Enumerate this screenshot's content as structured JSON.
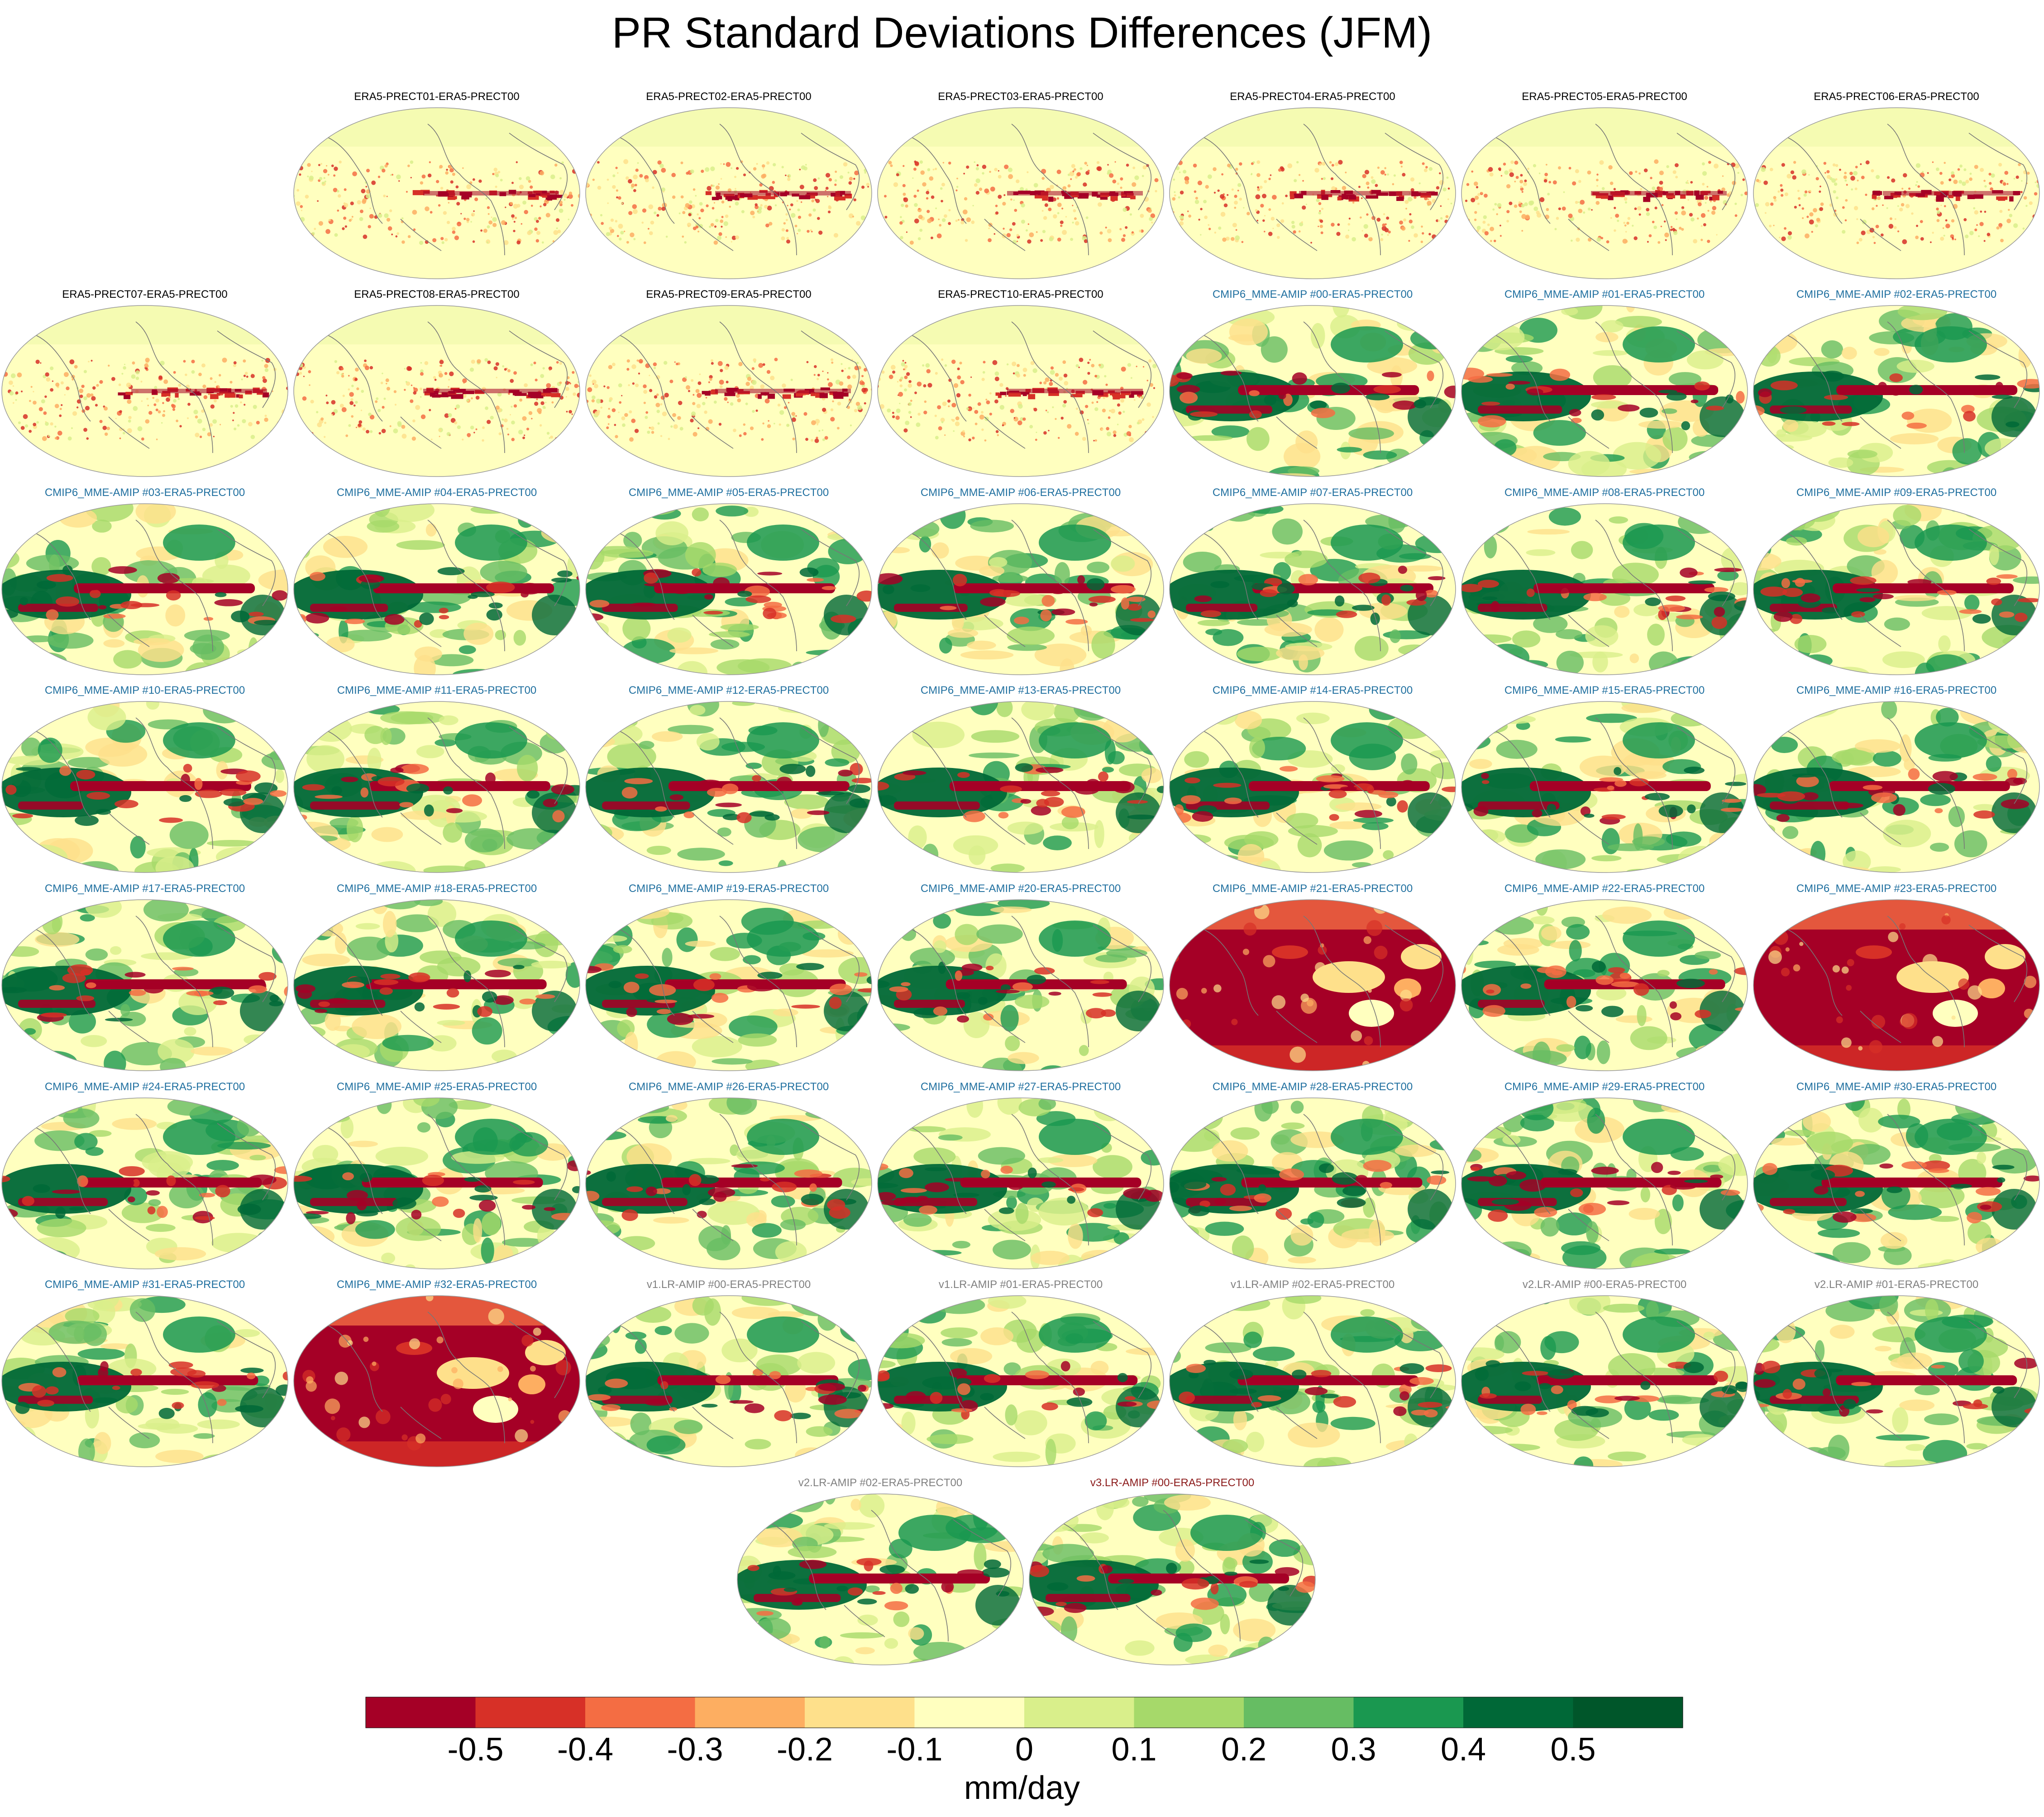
{
  "chart_data": {
    "type": "heatmap",
    "title": "PR Standard Deviations Differences (JFM)",
    "projection": "global ellipse map (Robinson-like), continent outlines",
    "units": "mm/day",
    "colorbar": {
      "ticks": [
        "-0.5",
        "-0.4",
        "-0.3",
        "-0.2",
        "-0.1",
        "0",
        "0.1",
        "0.2",
        "0.3",
        "0.4",
        "0.5"
      ],
      "colors": [
        "#a50026",
        "#d73027",
        "#f46d43",
        "#fdae61",
        "#fee08b",
        "#ffffbf",
        "#d9ef8b",
        "#a6d96a",
        "#66bd63",
        "#1a9850",
        "#006837",
        "#00562a"
      ],
      "orientation": "horizontal",
      "placement": "bottom"
    },
    "label_colors": {
      "ERA5": "#000000",
      "CMIP6": "#1f6f9f",
      "v1": "#808080",
      "v2": "#808080",
      "v3": "#8b1a1a"
    },
    "panels": [
      {
        "label": "ERA5-PRECT01-ERA5-PRECT00",
        "group": "ERA5",
        "pattern": "noise"
      },
      {
        "label": "ERA5-PRECT02-ERA5-PRECT00",
        "group": "ERA5",
        "pattern": "noise"
      },
      {
        "label": "ERA5-PRECT03-ERA5-PRECT00",
        "group": "ERA5",
        "pattern": "noise"
      },
      {
        "label": "ERA5-PRECT04-ERA5-PRECT00",
        "group": "ERA5",
        "pattern": "noise"
      },
      {
        "label": "ERA5-PRECT05-ERA5-PRECT00",
        "group": "ERA5",
        "pattern": "noise"
      },
      {
        "label": "ERA5-PRECT06-ERA5-PRECT00",
        "group": "ERA5",
        "pattern": "noise"
      },
      {
        "label": "ERA5-PRECT07-ERA5-PRECT00",
        "group": "ERA5",
        "pattern": "noise"
      },
      {
        "label": "ERA5-PRECT08-ERA5-PRECT00",
        "group": "ERA5",
        "pattern": "noise"
      },
      {
        "label": "ERA5-PRECT09-ERA5-PRECT00",
        "group": "ERA5",
        "pattern": "noise"
      },
      {
        "label": "ERA5-PRECT10-ERA5-PRECT00",
        "group": "ERA5",
        "pattern": "noise"
      },
      {
        "label": "CMIP6_MME-AMIP  #00-ERA5-PRECT00",
        "group": "CMIP6",
        "pattern": "model"
      },
      {
        "label": "CMIP6_MME-AMIP  #01-ERA5-PRECT00",
        "group": "CMIP6",
        "pattern": "model"
      },
      {
        "label": "CMIP6_MME-AMIP  #02-ERA5-PRECT00",
        "group": "CMIP6",
        "pattern": "model"
      },
      {
        "label": "CMIP6_MME-AMIP  #03-ERA5-PRECT00",
        "group": "CMIP6",
        "pattern": "model"
      },
      {
        "label": "CMIP6_MME-AMIP  #04-ERA5-PRECT00",
        "group": "CMIP6",
        "pattern": "model"
      },
      {
        "label": "CMIP6_MME-AMIP  #05-ERA5-PRECT00",
        "group": "CMIP6",
        "pattern": "model"
      },
      {
        "label": "CMIP6_MME-AMIP  #06-ERA5-PRECT00",
        "group": "CMIP6",
        "pattern": "model"
      },
      {
        "label": "CMIP6_MME-AMIP  #07-ERA5-PRECT00",
        "group": "CMIP6",
        "pattern": "model"
      },
      {
        "label": "CMIP6_MME-AMIP  #08-ERA5-PRECT00",
        "group": "CMIP6",
        "pattern": "model"
      },
      {
        "label": "CMIP6_MME-AMIP  #09-ERA5-PRECT00",
        "group": "CMIP6",
        "pattern": "model"
      },
      {
        "label": "CMIP6_MME-AMIP  #10-ERA5-PRECT00",
        "group": "CMIP6",
        "pattern": "model"
      },
      {
        "label": "CMIP6_MME-AMIP  #11-ERA5-PRECT00",
        "group": "CMIP6",
        "pattern": "model"
      },
      {
        "label": "CMIP6_MME-AMIP  #12-ERA5-PRECT00",
        "group": "CMIP6",
        "pattern": "model"
      },
      {
        "label": "CMIP6_MME-AMIP  #13-ERA5-PRECT00",
        "group": "CMIP6",
        "pattern": "model"
      },
      {
        "label": "CMIP6_MME-AMIP  #14-ERA5-PRECT00",
        "group": "CMIP6",
        "pattern": "model"
      },
      {
        "label": "CMIP6_MME-AMIP  #15-ERA5-PRECT00",
        "group": "CMIP6",
        "pattern": "model"
      },
      {
        "label": "CMIP6_MME-AMIP  #16-ERA5-PRECT00",
        "group": "CMIP6",
        "pattern": "model"
      },
      {
        "label": "CMIP6_MME-AMIP  #17-ERA5-PRECT00",
        "group": "CMIP6",
        "pattern": "model"
      },
      {
        "label": "CMIP6_MME-AMIP  #18-ERA5-PRECT00",
        "group": "CMIP6",
        "pattern": "model"
      },
      {
        "label": "CMIP6_MME-AMIP  #19-ERA5-PRECT00",
        "group": "CMIP6",
        "pattern": "model"
      },
      {
        "label": "CMIP6_MME-AMIP  #20-ERA5-PRECT00",
        "group": "CMIP6",
        "pattern": "model"
      },
      {
        "label": "CMIP6_MME-AMIP  #21-ERA5-PRECT00",
        "group": "CMIP6",
        "pattern": "red"
      },
      {
        "label": "CMIP6_MME-AMIP  #22-ERA5-PRECT00",
        "group": "CMIP6",
        "pattern": "model"
      },
      {
        "label": "CMIP6_MME-AMIP  #23-ERA5-PRECT00",
        "group": "CMIP6",
        "pattern": "red"
      },
      {
        "label": "CMIP6_MME-AMIP  #24-ERA5-PRECT00",
        "group": "CMIP6",
        "pattern": "model"
      },
      {
        "label": "CMIP6_MME-AMIP  #25-ERA5-PRECT00",
        "group": "CMIP6",
        "pattern": "model"
      },
      {
        "label": "CMIP6_MME-AMIP  #26-ERA5-PRECT00",
        "group": "CMIP6",
        "pattern": "model"
      },
      {
        "label": "CMIP6_MME-AMIP  #27-ERA5-PRECT00",
        "group": "CMIP6",
        "pattern": "model"
      },
      {
        "label": "CMIP6_MME-AMIP  #28-ERA5-PRECT00",
        "group": "CMIP6",
        "pattern": "model"
      },
      {
        "label": "CMIP6_MME-AMIP  #29-ERA5-PRECT00",
        "group": "CMIP6",
        "pattern": "model"
      },
      {
        "label": "CMIP6_MME-AMIP  #30-ERA5-PRECT00",
        "group": "CMIP6",
        "pattern": "model"
      },
      {
        "label": "CMIP6_MME-AMIP  #31-ERA5-PRECT00",
        "group": "CMIP6",
        "pattern": "model"
      },
      {
        "label": "CMIP6_MME-AMIP  #32-ERA5-PRECT00",
        "group": "CMIP6",
        "pattern": "red"
      },
      {
        "label": "v1.LR-AMIP  #00-ERA5-PRECT00",
        "group": "v1",
        "pattern": "model"
      },
      {
        "label": "v1.LR-AMIP  #01-ERA5-PRECT00",
        "group": "v1",
        "pattern": "model"
      },
      {
        "label": "v1.LR-AMIP  #02-ERA5-PRECT00",
        "group": "v1",
        "pattern": "model"
      },
      {
        "label": "v2.LR-AMIP  #00-ERA5-PRECT00",
        "group": "v2",
        "pattern": "model"
      },
      {
        "label": "v2.LR-AMIP  #01-ERA5-PRECT00",
        "group": "v2",
        "pattern": "model"
      },
      {
        "label": "v2.LR-AMIP  #02-ERA5-PRECT00",
        "group": "v2",
        "pattern": "model"
      },
      {
        "label": "v3.LR-AMIP  #00-ERA5-PRECT00",
        "group": "v3",
        "pattern": "model"
      }
    ]
  }
}
